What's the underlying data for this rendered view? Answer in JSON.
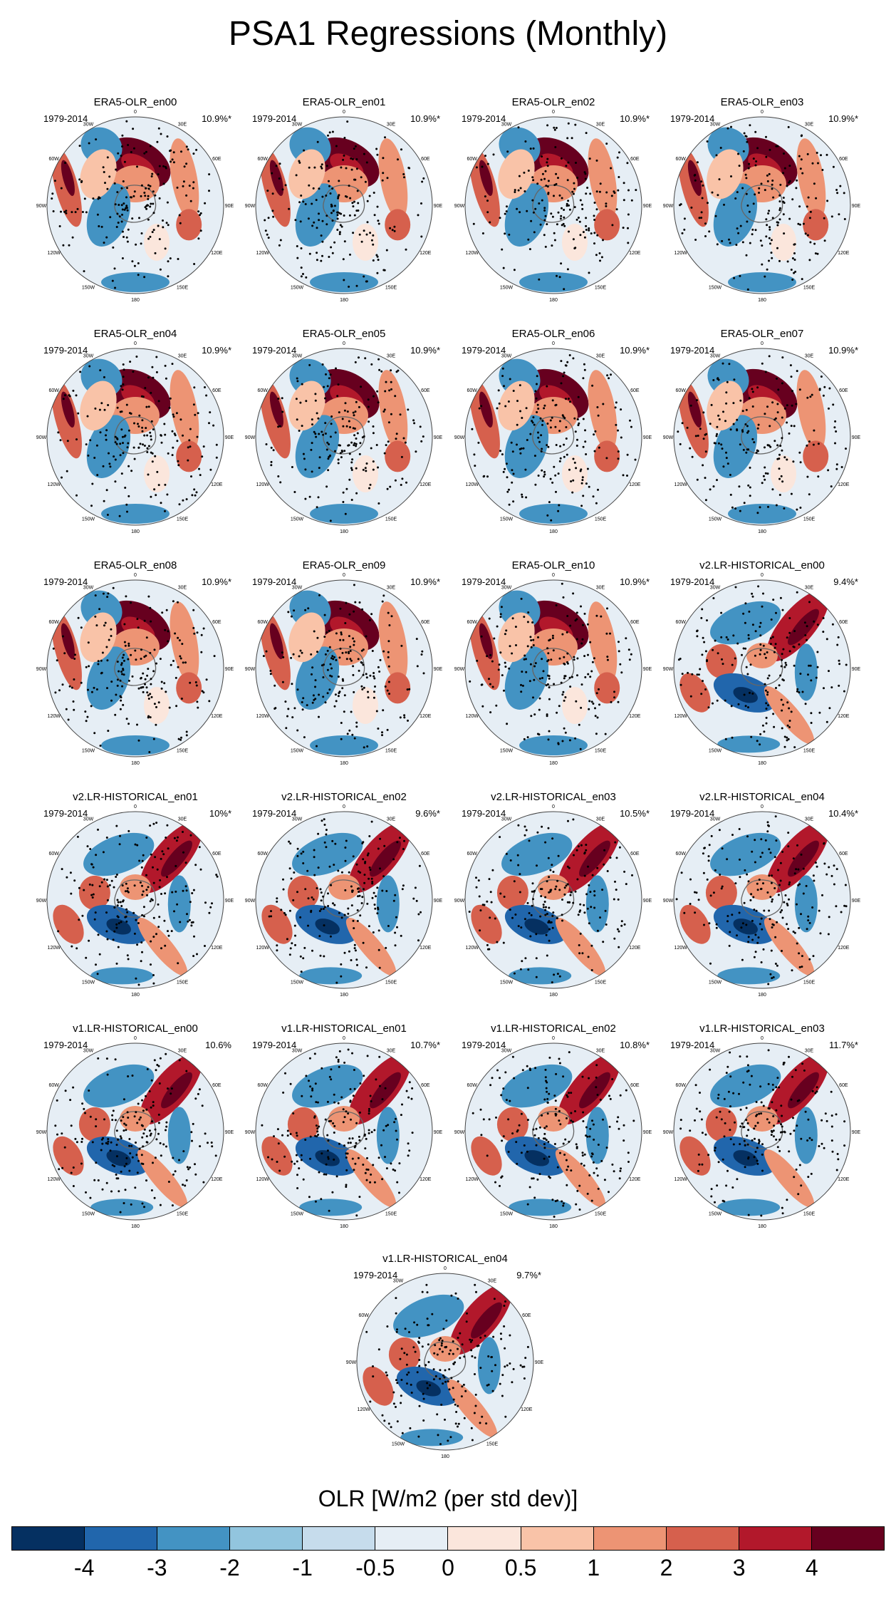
{
  "title": "PSA1 Regressions (Monthly)",
  "period": "1979-2014",
  "lon_labels": [
    "0",
    "30E",
    "60E",
    "90E",
    "120E",
    "150E",
    "180",
    "150W",
    "120W",
    "90W",
    "60W",
    "30W"
  ],
  "panels": [
    {
      "name": "ERA5-OLR_en00",
      "pct": "10.9%*",
      "pattern": "era5"
    },
    {
      "name": "ERA5-OLR_en01",
      "pct": "10.9%*",
      "pattern": "era5"
    },
    {
      "name": "ERA5-OLR_en02",
      "pct": "10.9%*",
      "pattern": "era5"
    },
    {
      "name": "ERA5-OLR_en03",
      "pct": "10.9%*",
      "pattern": "era5"
    },
    {
      "name": "ERA5-OLR_en04",
      "pct": "10.9%*",
      "pattern": "era5"
    },
    {
      "name": "ERA5-OLR_en05",
      "pct": "10.9%*",
      "pattern": "era5"
    },
    {
      "name": "ERA5-OLR_en06",
      "pct": "10.9%*",
      "pattern": "era5"
    },
    {
      "name": "ERA5-OLR_en07",
      "pct": "10.9%*",
      "pattern": "era5"
    },
    {
      "name": "ERA5-OLR_en08",
      "pct": "10.9%*",
      "pattern": "era5"
    },
    {
      "name": "ERA5-OLR_en09",
      "pct": "10.9%*",
      "pattern": "era5"
    },
    {
      "name": "ERA5-OLR_en10",
      "pct": "10.9%*",
      "pattern": "era5"
    },
    {
      "name": "v2.LR-HISTORICAL_en00",
      "pct": "9.4%*",
      "pattern": "model"
    },
    {
      "name": "v2.LR-HISTORICAL_en01",
      "pct": "10%*",
      "pattern": "model"
    },
    {
      "name": "v2.LR-HISTORICAL_en02",
      "pct": "9.6%*",
      "pattern": "model"
    },
    {
      "name": "v2.LR-HISTORICAL_en03",
      "pct": "10.5%*",
      "pattern": "model"
    },
    {
      "name": "v2.LR-HISTORICAL_en04",
      "pct": "10.4%*",
      "pattern": "model"
    },
    {
      "name": "v1.LR-HISTORICAL_en00",
      "pct": "10.6%",
      "pattern": "model"
    },
    {
      "name": "v1.LR-HISTORICAL_en01",
      "pct": "10.7%*",
      "pattern": "model"
    },
    {
      "name": "v1.LR-HISTORICAL_en02",
      "pct": "10.8%*",
      "pattern": "model"
    },
    {
      "name": "v1.LR-HISTORICAL_en03",
      "pct": "11.7%*",
      "pattern": "model"
    },
    {
      "name": "v1.LR-HISTORICAL_en04",
      "pct": "9.7%*",
      "pattern": "model"
    }
  ],
  "colorbar": {
    "title": "OLR [W/m2 (per std dev)]",
    "colors": [
      "#053061",
      "#2166ac",
      "#4393c3",
      "#92c5de",
      "#c6dcec",
      "#e6eef5",
      "#fbe6dc",
      "#f9c3a8",
      "#ed9474",
      "#d6604d",
      "#b2182b",
      "#67001f"
    ],
    "ticks": [
      "-4",
      "-3",
      "-2",
      "-1",
      "-0.5",
      "0",
      "0.5",
      "1",
      "2",
      "3",
      "4"
    ]
  }
}
